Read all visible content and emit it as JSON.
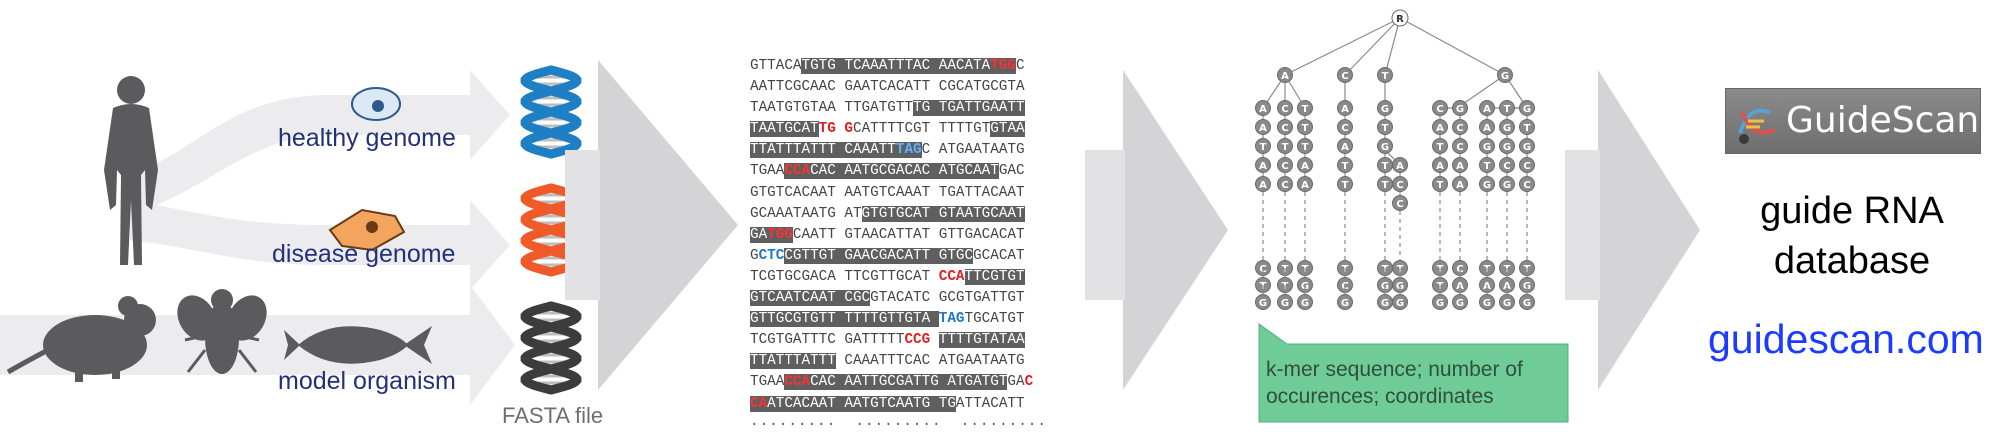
{
  "sources": {
    "healthy_label": "healthy genome",
    "disease_label": "disease genome",
    "model_label": "model organism",
    "fasta_label": "FASTA file"
  },
  "sequence_block": {
    "rows": [
      [
        [
          "n",
          "GTTACA"
        ],
        [
          "h",
          "TGTG TCAAATTTAC AACATA"
        ],
        [
          "rh",
          "TGG"
        ],
        [
          "n",
          "C"
        ]
      ],
      [
        [
          "n",
          "AATTCGCAAC GAATCACATT CGCATGCGTA"
        ]
      ],
      [
        [
          "n",
          "TAATGTGTAA TTGATGTT"
        ],
        [
          "h",
          "TG TGATTGAATT"
        ]
      ],
      [
        [
          "h",
          "TAATGCAT"
        ],
        [
          "r",
          "TG"
        ],
        [
          "n",
          " "
        ],
        [
          "r",
          "G"
        ],
        [
          "n",
          "CATTTTCGT TTTTGT"
        ],
        [
          "h",
          "GTAA"
        ]
      ],
      [
        [
          "h",
          "TTATTTATTT CAAATT"
        ],
        [
          "bh",
          "TAG"
        ],
        [
          "n",
          "C ATGAATAATG"
        ]
      ],
      [
        [
          "n",
          "TGAA"
        ],
        [
          "rh",
          "CCA"
        ],
        [
          "h",
          "CAC AATGCGACAC ATGCAAT"
        ],
        [
          "n",
          "GAC"
        ]
      ],
      [
        [
          "n",
          "GTGTCACAAT AATGTCAAAT TGATTACAAT"
        ]
      ],
      [
        [
          "n",
          "GCAAATAATG AT"
        ],
        [
          "h",
          "GTGTGCAT GTAATGCAAT"
        ]
      ],
      [
        [
          "h",
          "GA"
        ],
        [
          "rh",
          "TGG"
        ],
        [
          "n",
          "CAATT GTAACATTAT GTTGACACAT"
        ]
      ],
      [
        [
          "n",
          "G"
        ],
        [
          "b",
          "CTC"
        ],
        [
          "h",
          "CGTTGT GAACGACATT GTGC"
        ],
        [
          "n",
          "GCACAT"
        ]
      ],
      [
        [
          "n",
          "TCGTGCGACA TTCGTTGCAT "
        ],
        [
          "r",
          "CCA"
        ],
        [
          "h",
          "TTCGTGT"
        ]
      ],
      [
        [
          "h",
          "GTCAATCAAT CGC"
        ],
        [
          "n",
          "GTACATC GCGTGATTGT"
        ]
      ],
      [
        [
          "h",
          "GTTGCGTGTT TTTTGTTGTA "
        ],
        [
          "b",
          "TAG"
        ],
        [
          "n",
          "TGCATGT"
        ]
      ],
      [
        [
          "n",
          "TCGTGATTTC GATTTTT"
        ],
        [
          "r",
          "CCG"
        ],
        [
          "n",
          " "
        ],
        [
          "h",
          "TTTTGTATAA"
        ]
      ],
      [
        [
          "h",
          "TTATTTATTT"
        ],
        [
          "n",
          " CAAATTTCAC ATGAATAATG"
        ]
      ],
      [
        [
          "n",
          "TGAA"
        ],
        [
          "rh",
          "CCA"
        ],
        [
          "h",
          "CAC AATTGCGATTG ATGATGT"
        ],
        [
          "n",
          "GA"
        ],
        [
          "r",
          "C"
        ]
      ],
      [
        [
          "rh",
          "CA"
        ],
        [
          "h",
          "ATCACAAT AATGTCAATG TG"
        ],
        [
          "n",
          "ATTACATT"
        ]
      ],
      [
        [
          "d",
          "·········  ·········  ·········"
        ]
      ]
    ]
  },
  "trie": {
    "root": "R",
    "level1": [
      "A",
      "C",
      "T",
      "G"
    ],
    "callout": "k-mer sequence; number of occurences; coordinates"
  },
  "output": {
    "logo_text": "GuideScan",
    "db_line1": "guide RNA",
    "db_line2": "database",
    "url": "guidescan.com"
  },
  "colors": {
    "helix_healthy": "#1f7fc4",
    "helix_disease": "#f05a28",
    "helix_model": "#3c3c3c",
    "arrow_gray": "#d4d4d6",
    "callout_green": "#6fcc96",
    "url_blue": "#1b3bff"
  },
  "icons": [
    "human-silhouette-icon",
    "mouse-icon",
    "fly-icon",
    "fish-icon",
    "cell-icon",
    "dna-helix-icon",
    "trie-tree-icon",
    "guidescan-logo-icon"
  ]
}
